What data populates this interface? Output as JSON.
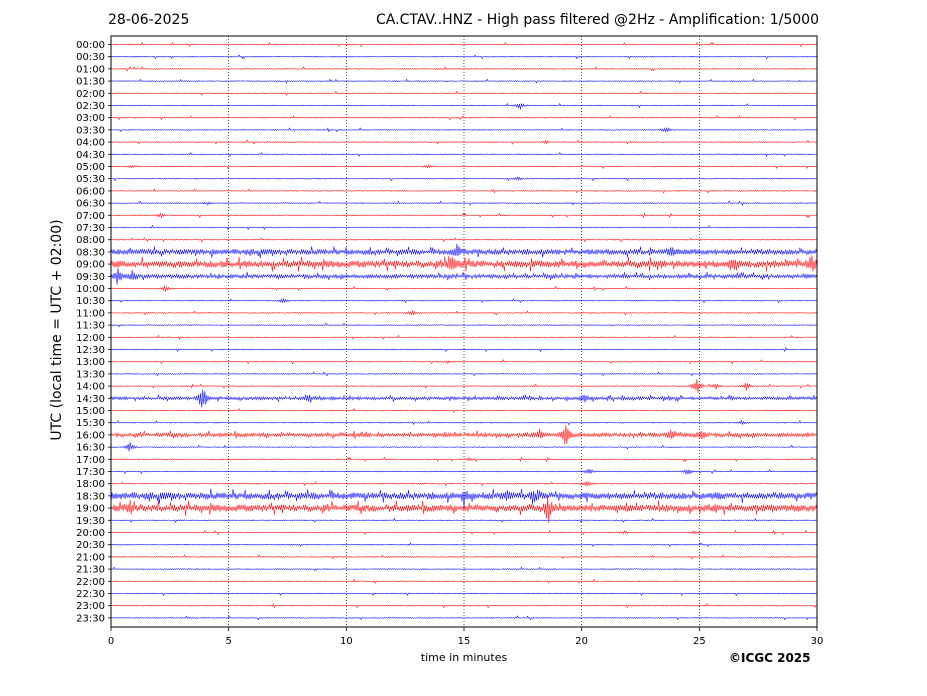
{
  "header": {
    "date": "28-06-2025",
    "title": "CA.CTAV..HNZ - High pass filtered @2Hz - Amplification: 1/5000"
  },
  "footer": {
    "copyright": "©ICGC 2025"
  },
  "chart_data": {
    "type": "seismogram",
    "xlabel": "time in minutes",
    "ylabel": "UTC (local time = UTC + 02:00)",
    "xlim": [
      0,
      30
    ],
    "x_ticks": [
      0,
      5,
      10,
      15,
      20,
      25,
      30
    ],
    "vertical_gridlines": [
      5,
      10,
      15,
      20,
      25
    ],
    "colors": {
      "even_row": "#ff0000",
      "odd_row": "#0000ff",
      "grid": "#000000"
    },
    "rows": [
      "00:00",
      "00:30",
      "01:00",
      "01:30",
      "02:00",
      "02:30",
      "03:00",
      "03:30",
      "04:00",
      "04:30",
      "05:00",
      "05:30",
      "06:00",
      "06:30",
      "07:00",
      "07:30",
      "08:00",
      "08:30",
      "09:00",
      "09:30",
      "10:00",
      "10:30",
      "11:00",
      "11:30",
      "12:00",
      "12:30",
      "13:00",
      "13:30",
      "14:00",
      "14:30",
      "15:00",
      "15:30",
      "16:00",
      "16:30",
      "17:00",
      "17:30",
      "18:00",
      "18:30",
      "19:00",
      "19:30",
      "20:00",
      "20:30",
      "21:00",
      "21:30",
      "22:00",
      "22:30",
      "23:00",
      "23:30"
    ],
    "noise_level": {
      "08:30": 0.35,
      "09:00": 0.45,
      "09:30": 0.25,
      "14:30": 0.2,
      "16:00": 0.25,
      "18:30": 0.45,
      "19:00": 0.45
    },
    "bursts": [
      {
        "row": "02:30",
        "minute": 17.4,
        "amplitude": 0.5
      },
      {
        "row": "03:30",
        "minute": 23.6,
        "amplitude": 0.4
      },
      {
        "row": "04:00",
        "minute": 18.5,
        "amplitude": 0.2
      },
      {
        "row": "05:00",
        "minute": 0.9,
        "amplitude": 0.25
      },
      {
        "row": "05:00",
        "minute": 13.5,
        "amplitude": 0.2
      },
      {
        "row": "05:30",
        "minute": 17.3,
        "amplitude": 0.25
      },
      {
        "row": "06:30",
        "minute": 4.1,
        "amplitude": 0.2
      },
      {
        "row": "07:00",
        "minute": 2.1,
        "amplitude": 0.3
      },
      {
        "row": "08:30",
        "minute": 14.7,
        "amplitude": 0.8
      },
      {
        "row": "08:30",
        "minute": 23.8,
        "amplitude": 0.5
      },
      {
        "row": "09:00",
        "minute": 14.5,
        "amplitude": 1.0
      },
      {
        "row": "09:00",
        "minute": 26.5,
        "amplitude": 0.9
      },
      {
        "row": "09:00",
        "minute": 29.8,
        "amplitude": 1.2
      },
      {
        "row": "09:30",
        "minute": 0.3,
        "amplitude": 1.0
      },
      {
        "row": "09:30",
        "minute": 0.9,
        "amplitude": 0.6
      },
      {
        "row": "10:00",
        "minute": 2.3,
        "amplitude": 0.4
      },
      {
        "row": "10:30",
        "minute": 7.3,
        "amplitude": 0.4
      },
      {
        "row": "11:00",
        "minute": 12.8,
        "amplitude": 0.4
      },
      {
        "row": "13:00",
        "minute": 14.3,
        "amplitude": 0.2
      },
      {
        "row": "14:00",
        "minute": 24.9,
        "amplitude": 1.4
      },
      {
        "row": "14:00",
        "minute": 27.0,
        "amplitude": 0.6
      },
      {
        "row": "14:00",
        "minute": 25.7,
        "amplitude": 0.4
      },
      {
        "row": "14:30",
        "minute": 3.9,
        "amplitude": 2.0
      },
      {
        "row": "14:30",
        "minute": 20.1,
        "amplitude": 0.7
      },
      {
        "row": "14:30",
        "minute": 8.4,
        "amplitude": 0.5
      },
      {
        "row": "15:30",
        "minute": 26.8,
        "amplitude": 0.3
      },
      {
        "row": "16:00",
        "minute": 19.3,
        "amplitude": 1.6
      },
      {
        "row": "16:00",
        "minute": 18.2,
        "amplitude": 0.5
      },
      {
        "row": "16:00",
        "minute": 25.1,
        "amplitude": 0.7
      },
      {
        "row": "16:00",
        "minute": 23.8,
        "amplitude": 0.5
      },
      {
        "row": "16:30",
        "minute": 0.8,
        "amplitude": 0.7
      },
      {
        "row": "17:00",
        "minute": 15.2,
        "amplitude": 0.25
      },
      {
        "row": "17:30",
        "minute": 20.3,
        "amplitude": 0.5
      },
      {
        "row": "17:30",
        "minute": 24.5,
        "amplitude": 0.5
      },
      {
        "row": "18:00",
        "minute": 20.2,
        "amplitude": 0.5
      },
      {
        "row": "18:30",
        "minute": 15.0,
        "amplitude": 0.6
      },
      {
        "row": "18:30",
        "minute": 18.0,
        "amplitude": 0.6
      },
      {
        "row": "18:30",
        "minute": 16.8,
        "amplitude": 0.6
      },
      {
        "row": "19:00",
        "minute": 18.6,
        "amplitude": 1.4
      },
      {
        "row": "19:00",
        "minute": 0.8,
        "amplitude": 0.7
      },
      {
        "row": "20:00",
        "minute": 24.8,
        "amplitude": 0.25
      },
      {
        "row": "20:00",
        "minute": 21.8,
        "amplitude": 0.2
      }
    ]
  }
}
